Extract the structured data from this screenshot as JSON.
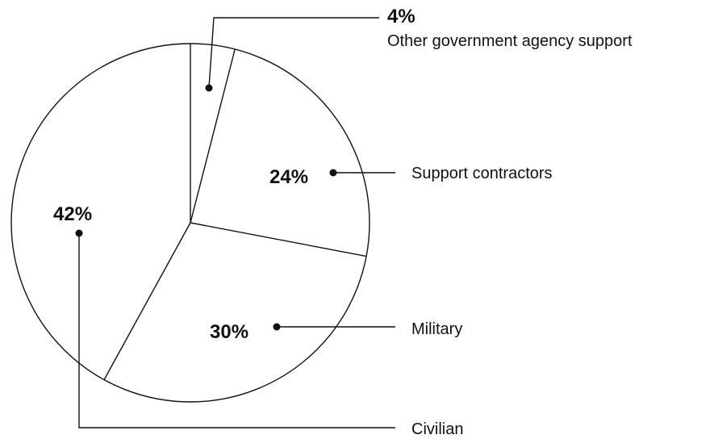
{
  "chart_data": {
    "type": "pie",
    "start_angle_deg": 0,
    "direction": "clockwise",
    "slices": [
      {
        "label": "Other government agency support",
        "value": 4,
        "value_label": "4%"
      },
      {
        "label": "Support contractors",
        "value": 24,
        "value_label": "24%"
      },
      {
        "label": "Military",
        "value": 30,
        "value_label": "30%"
      },
      {
        "label": "Civilian",
        "value": 42,
        "value_label": "42%"
      }
    ]
  }
}
